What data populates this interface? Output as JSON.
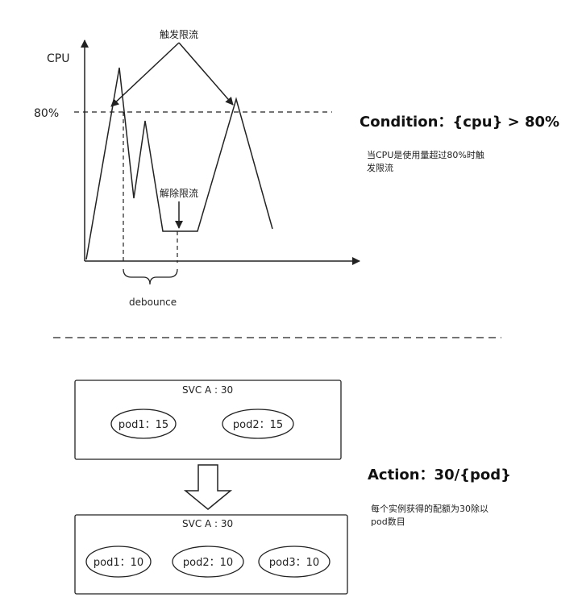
{
  "chart": {
    "y_axis_label": "CPU",
    "threshold_label": "80%",
    "trigger_label": "触发限流",
    "release_label": "解除限流",
    "debounce_label": "debounce"
  },
  "condition": {
    "title": "Condition：{cpu} > 80%",
    "note_lines": [
      "当CPU是使用量超过80%时触",
      "发限流"
    ]
  },
  "action": {
    "title": "Action：30/{pod}",
    "note_lines": [
      "每个实例获得的配额为30除以",
      "pod数目"
    ]
  },
  "before": {
    "svc_label": "SVC A : 30",
    "pods": [
      "pod1：15",
      "pod2：15"
    ]
  },
  "after": {
    "svc_label": "SVC A : 30",
    "pods": [
      "pod1：10",
      "pod2：10",
      "pod3：10"
    ]
  }
}
